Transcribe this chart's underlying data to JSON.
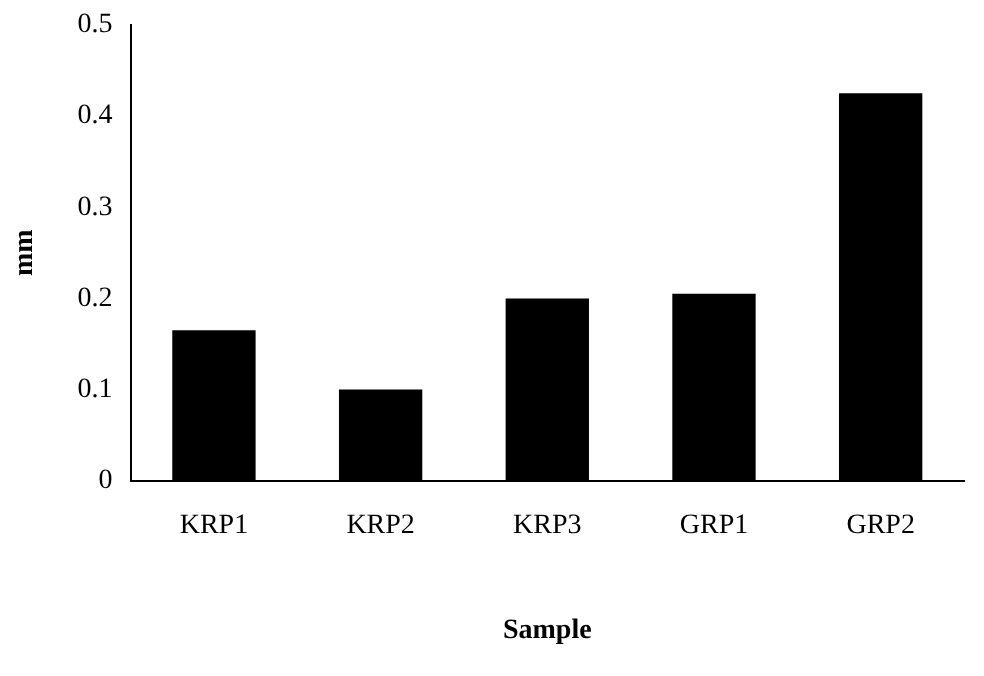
{
  "chart_data": {
    "type": "bar",
    "xlabel": "Sample",
    "ylabel": "mm",
    "categories": [
      "KRP1",
      "KRP2",
      "KRP3",
      "GRP1",
      "GRP2"
    ],
    "values": [
      0.165,
      0.1,
      0.2,
      0.205,
      0.425
    ],
    "color": "#000000",
    "ylim": [
      0,
      0.5
    ],
    "yticks": [
      0,
      0.1,
      0.2,
      0.3,
      0.4,
      0.5
    ],
    "grid": false,
    "legend": false
  }
}
